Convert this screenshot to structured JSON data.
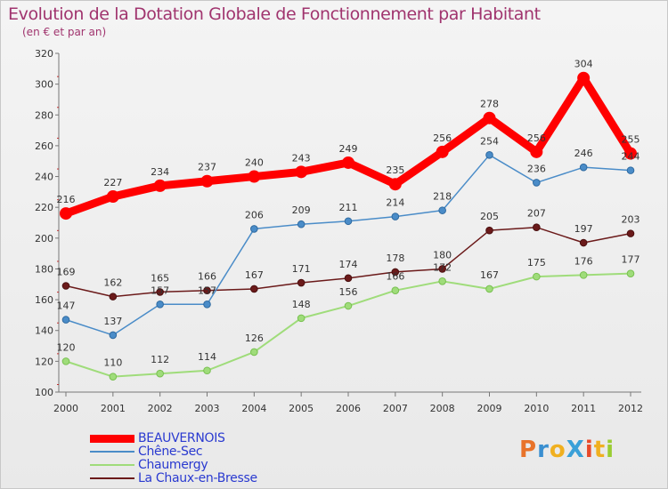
{
  "title": "Evolution de la Dotation Globale de Fonctionnement par Habitant",
  "subtitle": "(en € et par an)",
  "logo": {
    "text": "ProXiti",
    "colors": [
      "#e8732a",
      "#3a8fd0",
      "#f0b020",
      "#3aa0d8",
      "#e84a2a",
      "#f0b020",
      "#9acd32"
    ]
  },
  "chart_data": {
    "type": "line",
    "title": "Evolution de la Dotation Globale de Fonctionnement par Habitant",
    "subtitle": "(en € et par an)",
    "x": [
      "2000",
      "2001",
      "2002",
      "2003",
      "2004",
      "2005",
      "2006",
      "2007",
      "2008",
      "2009",
      "2010",
      "2011",
      "2012"
    ],
    "ylim": [
      100,
      320
    ],
    "yticks": [
      100,
      120,
      140,
      160,
      180,
      200,
      220,
      240,
      260,
      280,
      300,
      320
    ],
    "grid": false,
    "legend_position": "bottom-left",
    "series": [
      {
        "name": "BEAUVERNOIS",
        "color": "#ff0000",
        "values": [
          216,
          227,
          234,
          237,
          240,
          243,
          249,
          235,
          256,
          278,
          256,
          304,
          255
        ]
      },
      {
        "name": "Chêne-Sec",
        "color": "#4a8cc8",
        "values": [
          147,
          137,
          157,
          157,
          206,
          209,
          211,
          214,
          218,
          254,
          236,
          246,
          244
        ]
      },
      {
        "name": "Chaumergy",
        "color": "#9fdc7a",
        "values": [
          120,
          110,
          112,
          114,
          126,
          148,
          156,
          166,
          172,
          167,
          175,
          176,
          177
        ]
      },
      {
        "name": "La Chaux-en-Bresse",
        "color": "#6b1a1a",
        "values": [
          169,
          162,
          165,
          166,
          167,
          171,
          174,
          178,
          180,
          205,
          207,
          197,
          203
        ]
      }
    ],
    "labels": [
      [
        "216",
        "227",
        "234",
        "237",
        "240",
        "243",
        "249",
        "235",
        "256",
        "278",
        "256",
        "304",
        "255"
      ],
      [
        "147",
        "137",
        "157",
        "157",
        "206",
        "209",
        "211",
        "214",
        "218",
        "254",
        "236",
        "246",
        "244"
      ],
      [
        "120",
        "110",
        "112",
        "114",
        "126",
        "148",
        "156",
        "166",
        "172",
        "167",
        "175",
        "176",
        "177"
      ],
      [
        "169",
        "162",
        "165",
        "166",
        "167",
        "171",
        "174",
        "178",
        "180",
        "205",
        "207",
        "197",
        "203"
      ]
    ]
  }
}
